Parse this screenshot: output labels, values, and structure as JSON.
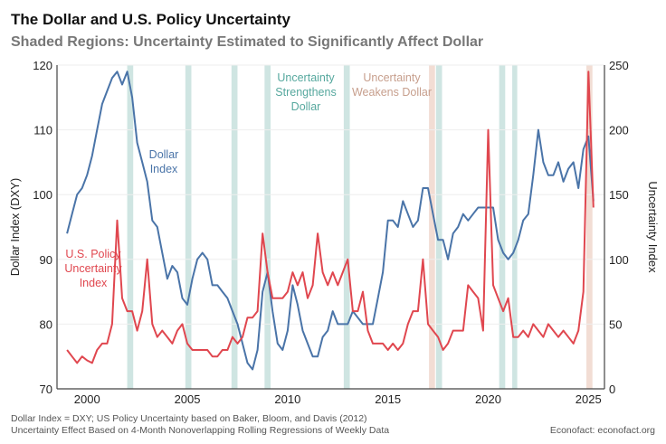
{
  "chart_data": {
    "type": "line",
    "title": "The Dollar and U.S. Policy Uncertainty",
    "subtitle": "Shaded Regions: Uncertainty Estimated to Significantly Affect Dollar",
    "ylabel_left": "Dollar Index (DXY)",
    "ylabel_right": "Uncertainty Index",
    "ylim_left": [
      70,
      120
    ],
    "ylim_right": [
      0,
      250
    ],
    "xlim": [
      1998.5,
      2025.8
    ],
    "x_ticks": [
      "2000",
      "2005",
      "2010",
      "2015",
      "2020",
      "2025"
    ],
    "y_ticks_left": [
      "70",
      "80",
      "90",
      "100",
      "110",
      "120"
    ],
    "y_ticks_right": [
      "0",
      "50",
      "100",
      "150",
      "200",
      "250"
    ],
    "grid": true,
    "colors": {
      "dollar": "#4a74a8",
      "uncertainty": "#e0474f",
      "strengthens": "#cfe5e2",
      "weakens": "#f2ddd4",
      "strengthens_text": "#56a89e",
      "weakens_text": "#c79f8d"
    },
    "annotations": {
      "dollar": "Dollar\nIndex",
      "uncertainty": "U.S. Policy\nUncertainty\nIndex",
      "strengthens": "Uncertainty\nStrengthens\nDollar",
      "weakens": "Uncertainty\nWeakens Dollar"
    },
    "shaded_regions": [
      {
        "start": 2002.0,
        "end": 2002.3,
        "effect": "strengthens"
      },
      {
        "start": 2004.9,
        "end": 2005.2,
        "effect": "strengthens"
      },
      {
        "start": 2007.2,
        "end": 2007.5,
        "effect": "strengthens"
      },
      {
        "start": 2008.85,
        "end": 2009.15,
        "effect": "strengthens"
      },
      {
        "start": 2012.8,
        "end": 2013.1,
        "effect": "strengthens"
      },
      {
        "start": 2017.05,
        "end": 2017.35,
        "effect": "weakens"
      },
      {
        "start": 2017.4,
        "end": 2017.7,
        "effect": "strengthens"
      },
      {
        "start": 2020.55,
        "end": 2020.85,
        "effect": "strengthens"
      },
      {
        "start": 2021.2,
        "end": 2021.45,
        "effect": "strengthens"
      },
      {
        "start": 2024.9,
        "end": 2025.2,
        "effect": "weakens"
      }
    ],
    "x_start": 1999.0,
    "x_step": 0.25,
    "series": [
      {
        "name": "Dollar Index",
        "axis": "left",
        "values": [
          94,
          97,
          100,
          101,
          103,
          106,
          110,
          114,
          116,
          118,
          119,
          117,
          119,
          115,
          108,
          105,
          102,
          96,
          95,
          91,
          87,
          89,
          88,
          84,
          83,
          87,
          90,
          91,
          90,
          86,
          86,
          85,
          84,
          82,
          80,
          77,
          74,
          73,
          76,
          85,
          88,
          82,
          77,
          76,
          79,
          86,
          83,
          79,
          77,
          75,
          75,
          78,
          79,
          82,
          80,
          80,
          80,
          82,
          81,
          80,
          80,
          80,
          84,
          88,
          96,
          96,
          95,
          99,
          97,
          95,
          96,
          101,
          101,
          97,
          93,
          93,
          90,
          94,
          95,
          97,
          96,
          97,
          98,
          98,
          98,
          98,
          93,
          91,
          90,
          91,
          93,
          96,
          97,
          103,
          110,
          105,
          103,
          103,
          105,
          102,
          104,
          105,
          101,
          107,
          109,
          99
        ]
      },
      {
        "name": "U.S. Policy Uncertainty Index",
        "axis": "right",
        "values": [
          30,
          25,
          20,
          25,
          22,
          20,
          30,
          35,
          35,
          50,
          130,
          70,
          60,
          60,
          45,
          60,
          100,
          50,
          40,
          45,
          40,
          35,
          45,
          50,
          35,
          30,
          30,
          30,
          30,
          25,
          25,
          30,
          30,
          40,
          35,
          40,
          55,
          55,
          60,
          120,
          90,
          70,
          70,
          70,
          75,
          90,
          80,
          90,
          70,
          80,
          120,
          90,
          80,
          90,
          80,
          90,
          100,
          60,
          60,
          75,
          45,
          35,
          35,
          35,
          30,
          35,
          30,
          35,
          50,
          60,
          60,
          100,
          50,
          45,
          40,
          30,
          35,
          45,
          45,
          45,
          80,
          75,
          70,
          45,
          200,
          80,
          70,
          60,
          70,
          40,
          40,
          45,
          40,
          50,
          45,
          40,
          50,
          45,
          40,
          45,
          40,
          35,
          45,
          75,
          245,
          140
        ]
      }
    ]
  },
  "footer": {
    "note1": "Dollar Index = DXY; US Policy Uncertainty based on Baker, Bloom, and Davis (2012)",
    "note2": "Uncertainty Effect Based on 4-Month Nonoverlapping Rolling Regressions of Weekly Data",
    "source": "Econofact: econofact.org"
  }
}
